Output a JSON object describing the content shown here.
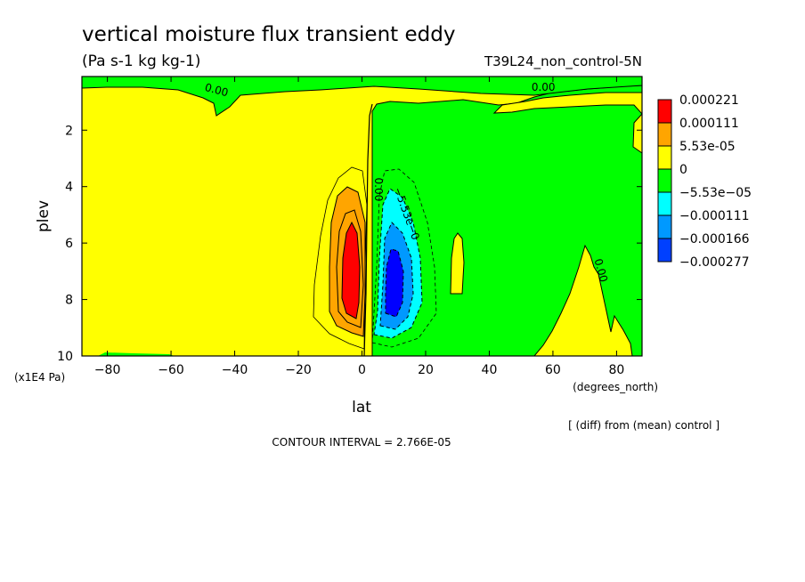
{
  "chart_data": {
    "type": "heatmap",
    "title": "vertical moisture flux transient eddy",
    "subtitle": "(Pa s-1 kg kg-1)",
    "run_label": "T39L24_non_control-5N",
    "xlabel": "lat",
    "xunits": "(degrees_north)",
    "ylabel": "plev",
    "yunits": "(x1E4 Pa)",
    "xlim": [
      -88,
      88
    ],
    "ylim": [
      10,
      0.1
    ],
    "xticks": [
      -80,
      -60,
      -40,
      -20,
      0,
      20,
      40,
      60,
      80
    ],
    "yticks": [
      2,
      4,
      6,
      8,
      10
    ],
    "note": "[ (diff) from (mean) control ]",
    "contour_interval": "CONTOUR INTERVAL = 2.766E-05",
    "legend": [
      {
        "label": "0.000221",
        "color": "#ff0000"
      },
      {
        "label": "0.000111",
        "color": "#ffa500"
      },
      {
        "label": "5.53e-05",
        "color": "#ffff00"
      },
      {
        "label": "0",
        "color": "#00ff00"
      },
      {
        "label": "−5.53e−05",
        "color": "#00ffff"
      },
      {
        "label": "−0.000111",
        "color": "#0099ff"
      },
      {
        "label": "−0.000166",
        "color": "#0000ff"
      },
      {
        "label": "−0.000277",
        "color": null
      }
    ],
    "contour_labels": [
      {
        "text": "0.00",
        "lat": -46,
        "plev": 0.7,
        "rotate": 15
      },
      {
        "text": "0.00",
        "lat": 57,
        "plev": 0.6,
        "rotate": 0
      },
      {
        "text": "0.00",
        "lat": 4,
        "plev": 4.1,
        "rotate": 90
      },
      {
        "text": "−5.53e−0",
        "lat": 13,
        "plev": 5.0,
        "rotate": 70
      },
      {
        "text": "0.00",
        "lat": 74,
        "plev": 7.0,
        "rotate": 75
      }
    ],
    "regions": {
      "positive_core": {
        "lat_center": -5,
        "plev_center": 7.2,
        "peak": "0.000221"
      },
      "negative_core": {
        "lat_center": 10,
        "plev_center": 7.5,
        "peak": "−0.000277"
      }
    }
  }
}
